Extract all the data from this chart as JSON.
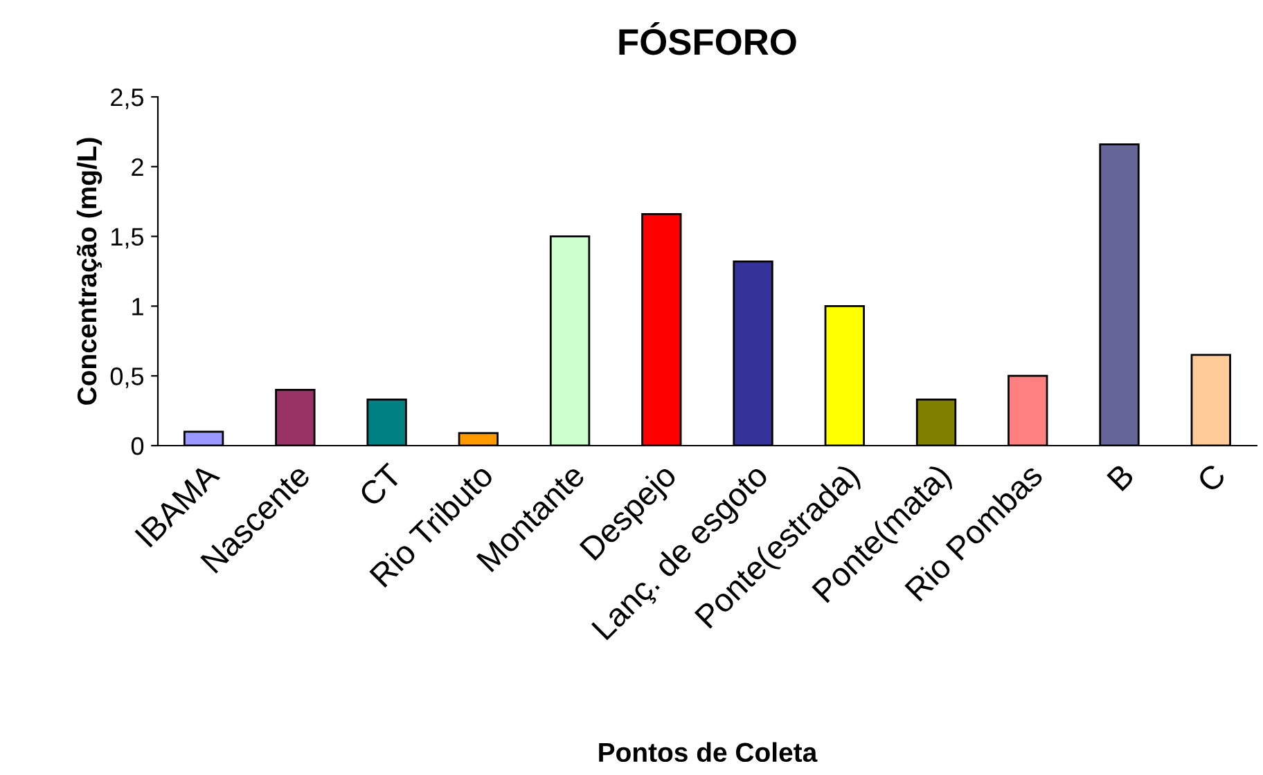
{
  "chart_data": {
    "type": "bar",
    "title": "FÓSFORO",
    "xlabel": "Pontos de Coleta",
    "ylabel": "Concentração (mg/L)",
    "categories": [
      "IBAMA",
      "Nascente",
      "CT",
      "Rio Tributo",
      "Montante",
      "Despejo",
      "Lanç. de esgoto",
      "Ponte(estrada)",
      "Ponte(mata)",
      "Rio Pombas",
      "B",
      "C"
    ],
    "values": [
      0.1,
      0.4,
      0.33,
      0.09,
      1.5,
      1.66,
      1.32,
      1.0,
      0.33,
      0.5,
      2.16,
      0.65
    ],
    "colors": [
      "#9999ff",
      "#993366",
      "#008080",
      "#ff9900",
      "#ccffcc",
      "#ff0000",
      "#333399",
      "#ffff00",
      "#808000",
      "#ff8080",
      "#666699",
      "#ffcc99"
    ],
    "ylim": [
      0,
      2.5
    ],
    "yticks": [
      0,
      {
        "value": 0.5,
        "label": "0,5"
      },
      1,
      {
        "value": 1.5,
        "label": "1,5"
      },
      2,
      {
        "value": 2.5,
        "label": "2,5"
      }
    ],
    "grid": false,
    "legend": false
  }
}
